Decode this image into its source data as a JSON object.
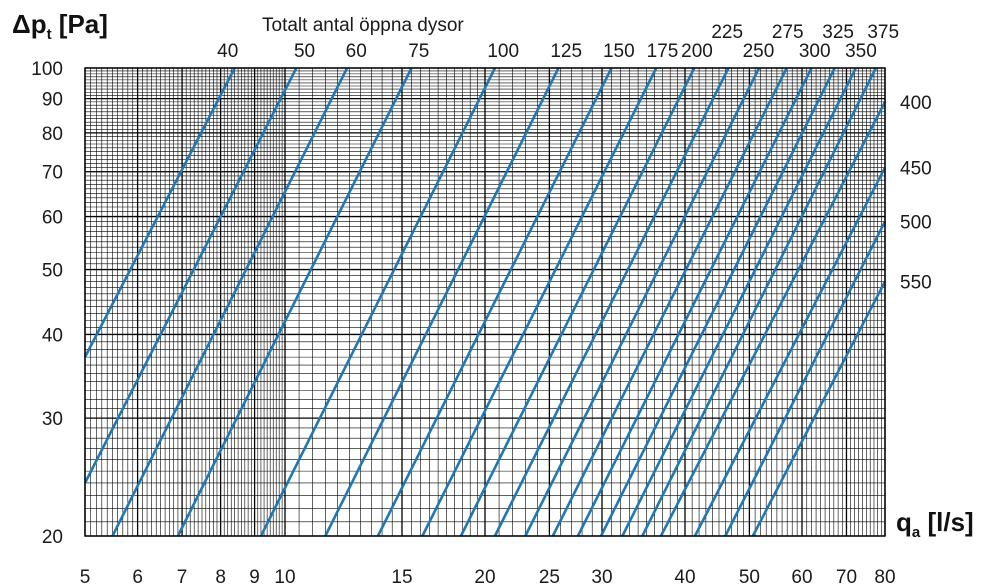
{
  "chart_data": {
    "type": "line",
    "title": "Totalt antal öppna dysor",
    "ylabel_main": "Δp",
    "ylabel_sub": "t",
    "ylabel_unit": " [Pa]",
    "xlabel_main": "q",
    "xlabel_sub": "a",
    "xlabel_unit": " [l/s]",
    "x_scale": "log",
    "y_scale": "log",
    "xlim": [
      5,
      80
    ],
    "ylim": [
      20,
      100
    ],
    "grid": true,
    "line_color": "#2077b4",
    "x_tick_labels": [
      "5",
      "6",
      "7",
      "8",
      "9",
      "10",
      "15",
      "20",
      "25",
      "30",
      "40",
      "50",
      "60",
      "70",
      "80"
    ],
    "y_tick_labels": [
      "20",
      "30",
      "40",
      "50",
      "60",
      "70",
      "80",
      "90",
      "100"
    ],
    "series": [
      {
        "name": "40",
        "x": [
          5.0,
          8.4
        ],
        "y": [
          37,
          100
        ]
      },
      {
        "name": "50",
        "x": [
          5.0,
          10.4
        ],
        "y": [
          24,
          100
        ]
      },
      {
        "name": "60",
        "x": [
          5.5,
          12.4
        ],
        "y": [
          20,
          100
        ]
      },
      {
        "name": "75",
        "x": [
          6.9,
          15.5
        ],
        "y": [
          20,
          100
        ]
      },
      {
        "name": "100",
        "x": [
          9.2,
          20.7
        ],
        "y": [
          20,
          100
        ]
      },
      {
        "name": "125",
        "x": [
          11.5,
          25.8
        ],
        "y": [
          20,
          100
        ]
      },
      {
        "name": "150",
        "x": [
          13.8,
          31.0
        ],
        "y": [
          20,
          100
        ]
      },
      {
        "name": "175",
        "x": [
          16.1,
          36.2
        ],
        "y": [
          20,
          100
        ]
      },
      {
        "name": "200",
        "x": [
          18.4,
          41.3
        ],
        "y": [
          20,
          100
        ]
      },
      {
        "name": "225",
        "x": [
          20.7,
          46.5
        ],
        "y": [
          20,
          100
        ]
      },
      {
        "name": "250",
        "x": [
          23.0,
          51.7
        ],
        "y": [
          20,
          100
        ]
      },
      {
        "name": "275",
        "x": [
          25.3,
          56.9
        ],
        "y": [
          20,
          100
        ]
      },
      {
        "name": "300",
        "x": [
          27.6,
          62.0
        ],
        "y": [
          20,
          100
        ]
      },
      {
        "name": "325",
        "x": [
          29.9,
          67.2
        ],
        "y": [
          20,
          100
        ]
      },
      {
        "name": "350",
        "x": [
          32.2,
          72.3
        ],
        "y": [
          20,
          100
        ]
      },
      {
        "name": "375",
        "x": [
          34.5,
          77.5
        ],
        "y": [
          20,
          100
        ]
      },
      {
        "name": "400",
        "x": [
          36.8,
          80
        ],
        "y": [
          20,
          89
        ]
      },
      {
        "name": "450",
        "x": [
          41.4,
          80
        ],
        "y": [
          20,
          71
        ]
      },
      {
        "name": "500",
        "x": [
          46.0,
          80
        ],
        "y": [
          20,
          59
        ]
      },
      {
        "name": "550",
        "x": [
          50.6,
          80
        ],
        "y": [
          20,
          48
        ]
      }
    ],
    "top_labels": [
      {
        "text": "40",
        "x": 8.2,
        "row": "low"
      },
      {
        "text": "50",
        "x": 10.7,
        "row": "low"
      },
      {
        "text": "60",
        "x": 12.8,
        "row": "low"
      },
      {
        "text": "75",
        "x": 15.9,
        "row": "low"
      },
      {
        "text": "100",
        "x": 21.3,
        "row": "low"
      },
      {
        "text": "125",
        "x": 26.5,
        "row": "low"
      },
      {
        "text": "150",
        "x": 31.8,
        "row": "low"
      },
      {
        "text": "175",
        "x": 37.0,
        "row": "low"
      },
      {
        "text": "200",
        "x": 41.7,
        "row": "low"
      },
      {
        "text": "225",
        "x": 46.3,
        "row": "high"
      },
      {
        "text": "250",
        "x": 51.6,
        "row": "low"
      },
      {
        "text": "275",
        "x": 57.1,
        "row": "high"
      },
      {
        "text": "300",
        "x": 62.7,
        "row": "low"
      },
      {
        "text": "325",
        "x": 68.0,
        "row": "high"
      },
      {
        "text": "350",
        "x": 73.6,
        "row": "low"
      },
      {
        "text": "375",
        "x": 79.5,
        "row": "high"
      }
    ],
    "right_labels": [
      {
        "text": "400",
        "y": 89
      },
      {
        "text": "450",
        "y": 71
      },
      {
        "text": "500",
        "y": 59
      },
      {
        "text": "550",
        "y": 48
      }
    ]
  }
}
